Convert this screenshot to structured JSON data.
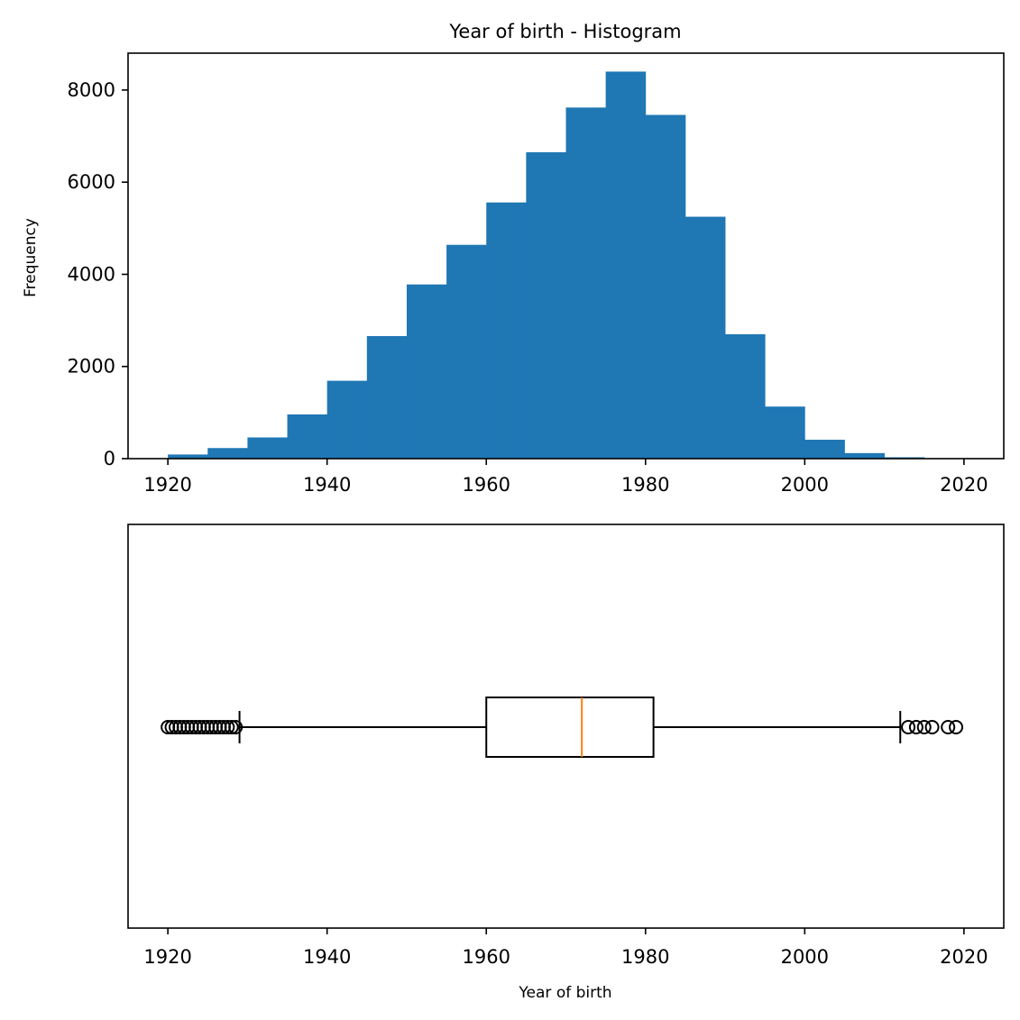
{
  "chart_data": [
    {
      "type": "bar",
      "title": "Year of birth - Histogram",
      "xlabel": "",
      "ylabel": "Frequency",
      "xlim": [
        1915,
        2025
      ],
      "ylim": [
        0,
        8800
      ],
      "xticks": [
        1920,
        1940,
        1960,
        1980,
        2000,
        2020
      ],
      "yticks": [
        0,
        2000,
        4000,
        6000,
        8000
      ],
      "bin_width": 5,
      "bins_start": [
        1920,
        1925,
        1930,
        1935,
        1940,
        1945,
        1950,
        1955,
        1960,
        1965,
        1970,
        1975,
        1980,
        1985,
        1990,
        1995,
        2000,
        2005,
        2010,
        2015
      ],
      "values": [
        90,
        230,
        460,
        960,
        1690,
        2660,
        3780,
        4640,
        5560,
        6650,
        7620,
        8400,
        7460,
        5250,
        2700,
        1130,
        410,
        120,
        30,
        5
      ],
      "bar_color": "#1f77b4",
      "grid": false
    },
    {
      "type": "boxplot",
      "title": "",
      "xlabel": "Year of birth",
      "ylabel": "",
      "xlim": [
        1915,
        2025
      ],
      "xticks": [
        1920,
        1940,
        1960,
        1980,
        2000,
        2020
      ],
      "whisker_low": 1929,
      "q1": 1960,
      "median": 1972,
      "q3": 1981,
      "whisker_high": 2012,
      "outliers_low": [
        1920,
        1920.5,
        1921,
        1921.5,
        1922,
        1922.5,
        1923,
        1923.5,
        1924,
        1924.5,
        1925,
        1925.5,
        1926,
        1926.5,
        1927,
        1927.5,
        1928,
        1928.5
      ],
      "outliers_high": [
        2013,
        2014,
        2015,
        2016,
        2018,
        2019
      ],
      "median_color": "#ff7f0e",
      "grid": false
    }
  ]
}
